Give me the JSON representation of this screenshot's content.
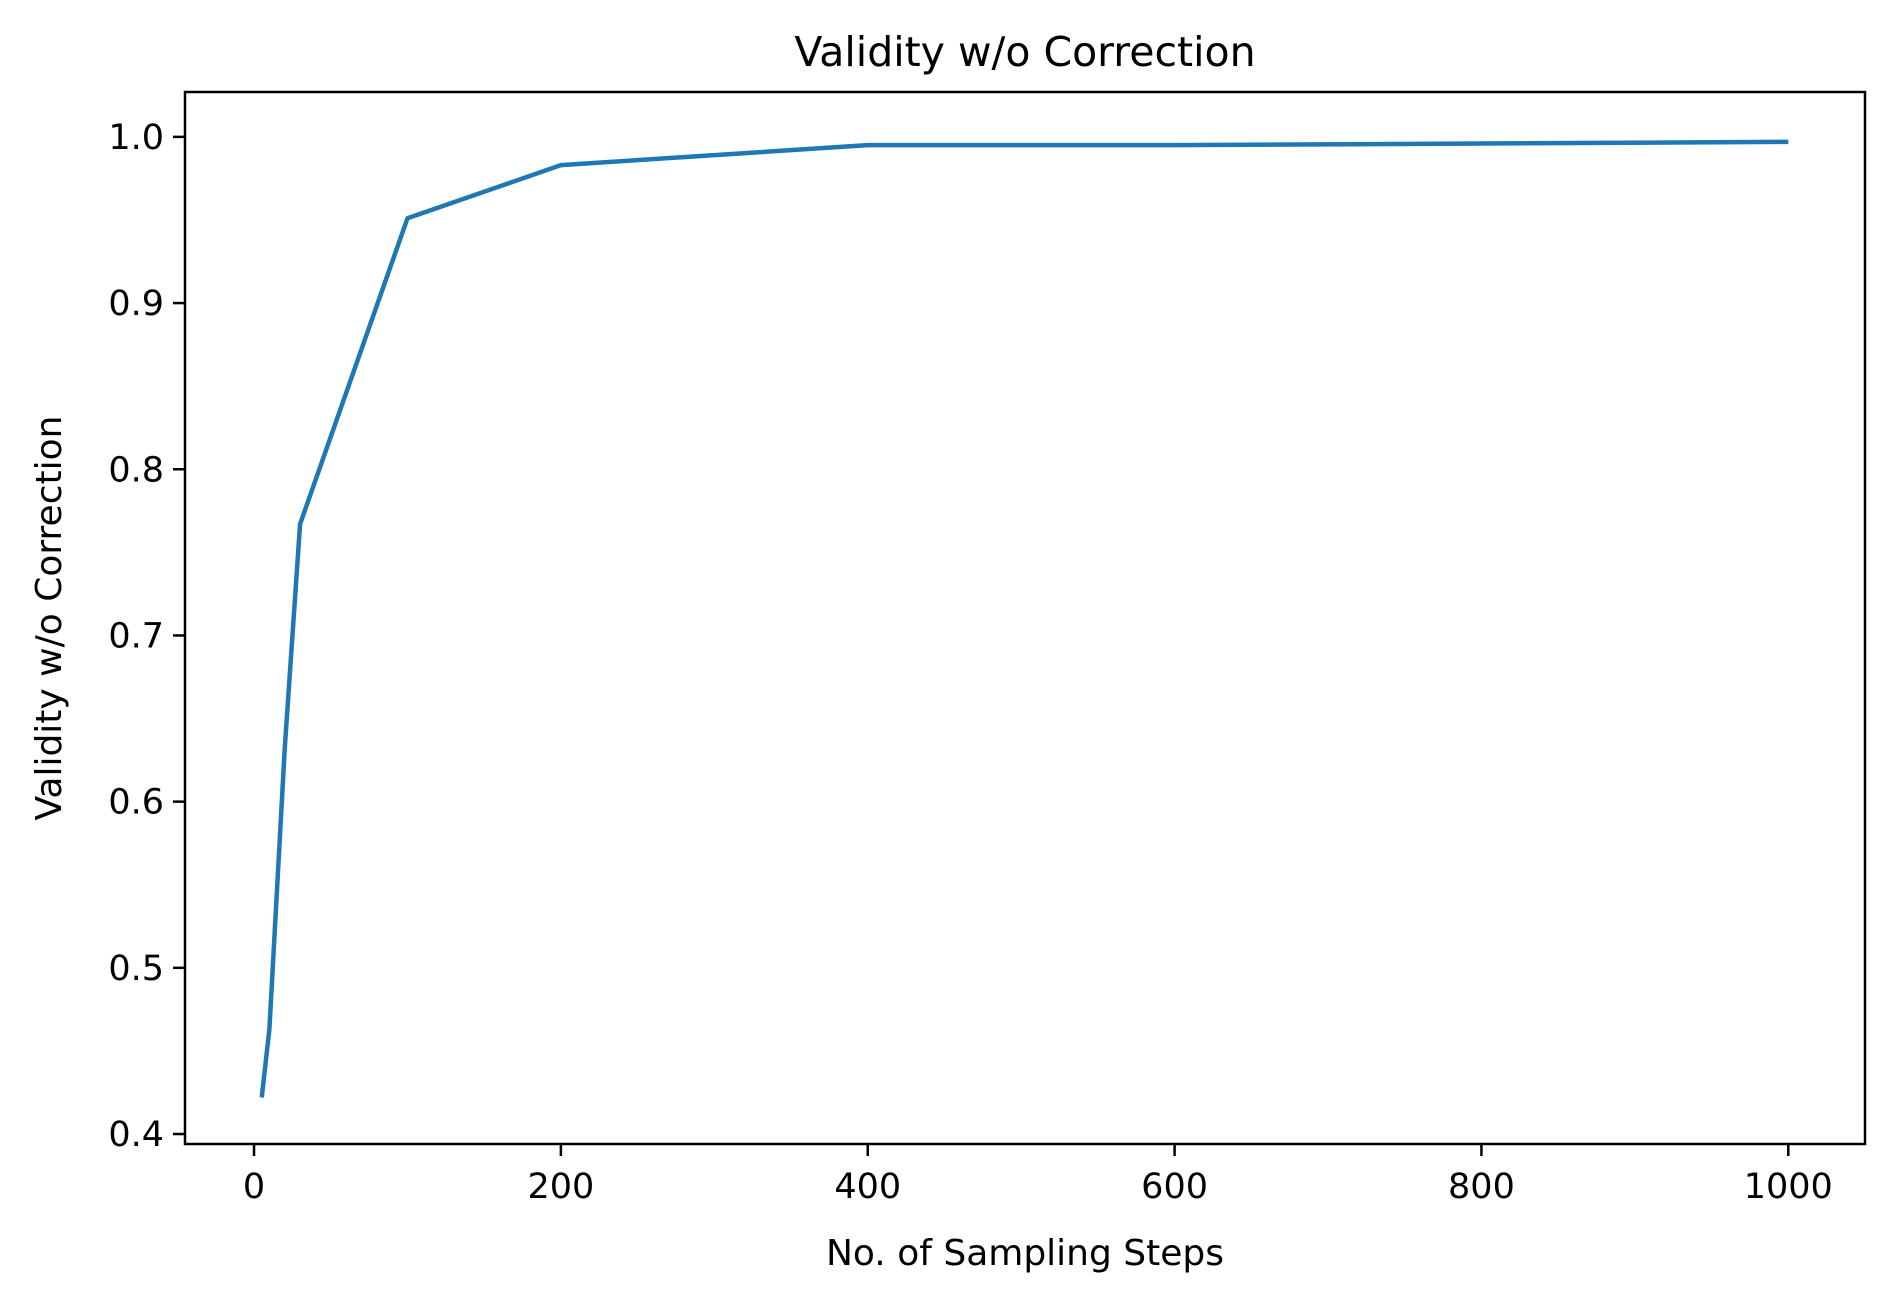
{
  "chart_data": {
    "type": "line",
    "title": "Validity w/o Correction",
    "xlabel": "No. of Sampling Steps",
    "ylabel": "Validity w/o Correction",
    "xlim": [
      -45,
      1050
    ],
    "ylim": [
      0.394,
      1.027
    ],
    "xticks": [
      0,
      200,
      400,
      600,
      800,
      1000
    ],
    "xtick_labels": [
      "0",
      "200",
      "400",
      "600",
      "800",
      "1000"
    ],
    "yticks": [
      0.4,
      0.5,
      0.6,
      0.7,
      0.8,
      0.9,
      1.0
    ],
    "ytick_labels": [
      "0.4",
      "0.5",
      "0.6",
      "0.7",
      "0.8",
      "0.9",
      "1.0"
    ],
    "grid": false,
    "series": [
      {
        "color": "#1f77b4",
        "x": [
          5,
          10,
          20,
          30,
          100,
          200,
          400,
          600,
          1000
        ],
        "y": [
          0.422,
          0.463,
          0.632,
          0.767,
          0.951,
          0.983,
          0.995,
          0.995,
          0.997
        ]
      }
    ]
  }
}
